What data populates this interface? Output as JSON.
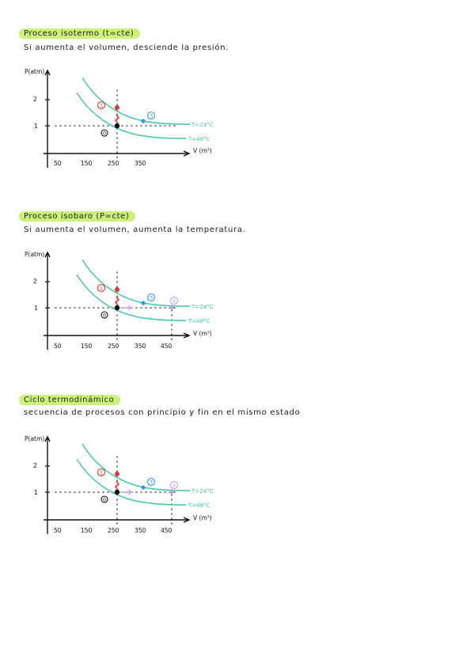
{
  "sections": [
    {
      "title": "Proceso isotermo   (t=cte)",
      "description": "Si aumenta el volumen, desciende la presión.",
      "graph": {
        "y_label": "P(atm)",
        "x_label": "V (m³)",
        "y_ticks": [
          "2",
          "1"
        ],
        "x_ticks": [
          "50",
          "150",
          "250",
          "350"
        ],
        "curve_labels": [
          "T=24°C",
          "T=48°C"
        ],
        "state_labels": [
          "1",
          "3",
          "0"
        ]
      }
    },
    {
      "title": "Proceso isobaro   (P=cte)",
      "description": "Si aumenta el volumen, aumenta la temperatura.",
      "graph": {
        "y_label": "P(atm)",
        "x_label": "V (m³)",
        "y_ticks": [
          "2",
          "1"
        ],
        "x_ticks": [
          "50",
          "150",
          "250",
          "350",
          "450"
        ],
        "curve_labels": [
          "T=24°C",
          "T=48°C"
        ],
        "state_labels": [
          "1",
          "3",
          "4",
          "0"
        ]
      }
    },
    {
      "title": "Ciclo termodinámico",
      "description": "secuencia de procesos con principio y fin en el mismo estado",
      "graph": {
        "y_label": "P(atm)",
        "x_label": "V (m³)",
        "y_ticks": [
          "2",
          "1"
        ],
        "x_ticks": [
          "50",
          "150",
          "250",
          "350",
          "450"
        ],
        "curve_labels": [
          "T=24°C",
          "T=48°C"
        ],
        "state_labels": [
          "1",
          "3",
          "4",
          "0"
        ]
      }
    }
  ],
  "colors": {
    "highlight": "#cdf27a",
    "isotherm": "#3cc6a5",
    "state_1": "#e8342f",
    "state_3": "#2e9be0",
    "state_4": "#c99af2",
    "state_0": "#111111"
  }
}
